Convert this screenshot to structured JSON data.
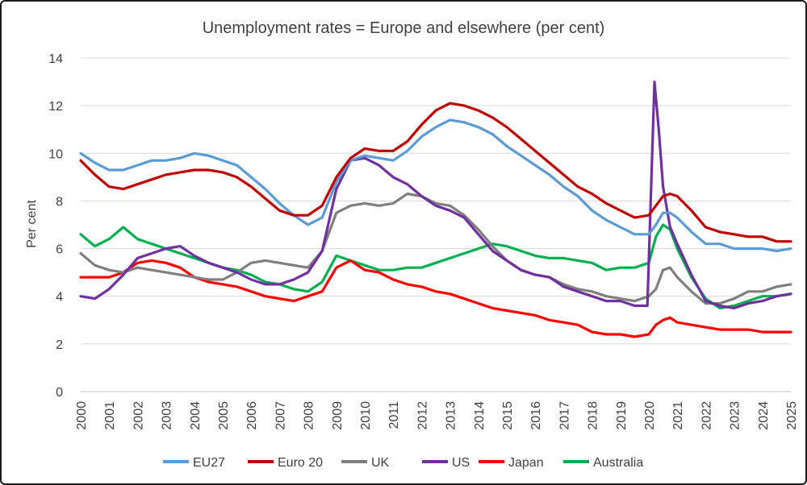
{
  "chart_data": {
    "type": "line",
    "title": "Unemployment rates = Europe and elsewhere (per cent)",
    "xlabel": "",
    "ylabel": "Per cent",
    "xlim": [
      2000,
      2025
    ],
    "ylim": [
      0,
      14
    ],
    "yticks": [
      0,
      2,
      4,
      6,
      8,
      10,
      12,
      14
    ],
    "xticks": [
      "2000",
      "2001",
      "2002",
      "2003",
      "2004",
      "2005",
      "2006",
      "2007",
      "2008",
      "2009",
      "2010",
      "2011",
      "2012",
      "2013",
      "2014",
      "2015",
      "2016",
      "2017",
      "2018",
      "2019",
      "2020",
      "2021",
      "2022",
      "2023",
      "2024",
      "2025"
    ],
    "grid": true,
    "legend_position": "bottom",
    "series": [
      {
        "name": "EU27",
        "color": "#5b9bd5",
        "x": [
          2000,
          2000.5,
          2001,
          2001.5,
          2002,
          2002.5,
          2003,
          2003.5,
          2004,
          2004.5,
          2005,
          2005.5,
          2006,
          2006.5,
          2007,
          2007.5,
          2008,
          2008.5,
          2009,
          2009.5,
          2010,
          2010.5,
          2011,
          2011.5,
          2012,
          2012.5,
          2013,
          2013.5,
          2014,
          2014.5,
          2015,
          2015.5,
          2016,
          2016.5,
          2017,
          2017.5,
          2018,
          2018.5,
          2019,
          2019.5,
          2020,
          2020.25,
          2020.5,
          2020.75,
          2021,
          2021.5,
          2022,
          2022.5,
          2023,
          2023.5,
          2024,
          2024.5,
          2025
        ],
        "y": [
          10.0,
          9.6,
          9.3,
          9.3,
          9.5,
          9.7,
          9.7,
          9.8,
          10.0,
          9.9,
          9.7,
          9.5,
          9.0,
          8.5,
          7.9,
          7.4,
          7.0,
          7.3,
          8.8,
          9.7,
          9.9,
          9.8,
          9.7,
          10.1,
          10.7,
          11.1,
          11.4,
          11.3,
          11.1,
          10.8,
          10.3,
          9.9,
          9.5,
          9.1,
          8.6,
          8.2,
          7.6,
          7.2,
          6.9,
          6.6,
          6.6,
          7.0,
          7.5,
          7.5,
          7.3,
          6.7,
          6.2,
          6.2,
          6.0,
          6.0,
          6.0,
          5.9,
          6.0
        ]
      },
      {
        "name": "Euro 20",
        "color": "#c00000",
        "x": [
          2000,
          2000.5,
          2001,
          2001.5,
          2002,
          2002.5,
          2003,
          2003.5,
          2004,
          2004.5,
          2005,
          2005.5,
          2006,
          2006.5,
          2007,
          2007.5,
          2008,
          2008.5,
          2009,
          2009.5,
          2010,
          2010.5,
          2011,
          2011.5,
          2012,
          2012.5,
          2013,
          2013.5,
          2014,
          2014.5,
          2015,
          2015.5,
          2016,
          2016.5,
          2017,
          2017.5,
          2018,
          2018.5,
          2019,
          2019.5,
          2020,
          2020.25,
          2020.5,
          2020.75,
          2021,
          2021.5,
          2022,
          2022.5,
          2023,
          2023.5,
          2024,
          2024.5,
          2025
        ],
        "y": [
          9.7,
          9.1,
          8.6,
          8.5,
          8.7,
          8.9,
          9.1,
          9.2,
          9.3,
          9.3,
          9.2,
          9.0,
          8.6,
          8.1,
          7.6,
          7.4,
          7.4,
          7.8,
          9.0,
          9.8,
          10.2,
          10.1,
          10.1,
          10.5,
          11.2,
          11.8,
          12.1,
          12.0,
          11.8,
          11.5,
          11.1,
          10.6,
          10.1,
          9.6,
          9.1,
          8.6,
          8.3,
          7.9,
          7.6,
          7.3,
          7.4,
          7.8,
          8.2,
          8.3,
          8.2,
          7.6,
          6.9,
          6.7,
          6.6,
          6.5,
          6.5,
          6.3,
          6.3
        ]
      },
      {
        "name": "UK",
        "color": "#7f7f7f",
        "x": [
          2000,
          2000.5,
          2001,
          2001.5,
          2002,
          2002.5,
          2003,
          2003.5,
          2004,
          2004.5,
          2005,
          2005.5,
          2006,
          2006.5,
          2007,
          2007.5,
          2008,
          2008.5,
          2009,
          2009.5,
          2010,
          2010.5,
          2011,
          2011.5,
          2012,
          2012.5,
          2013,
          2013.5,
          2014,
          2014.5,
          2015,
          2015.5,
          2016,
          2016.5,
          2017,
          2017.5,
          2018,
          2018.5,
          2019,
          2019.5,
          2020,
          2020.25,
          2020.5,
          2020.75,
          2021,
          2021.5,
          2022,
          2022.5,
          2023,
          2023.5,
          2024,
          2024.5,
          2025
        ],
        "y": [
          5.8,
          5.3,
          5.1,
          5.0,
          5.2,
          5.1,
          5.0,
          4.9,
          4.8,
          4.7,
          4.7,
          5.0,
          5.4,
          5.5,
          5.4,
          5.3,
          5.2,
          5.9,
          7.5,
          7.8,
          7.9,
          7.8,
          7.9,
          8.3,
          8.2,
          7.9,
          7.8,
          7.4,
          6.8,
          6.1,
          5.5,
          5.1,
          4.9,
          4.8,
          4.5,
          4.3,
          4.2,
          4.0,
          3.9,
          3.8,
          4.0,
          4.3,
          5.1,
          5.2,
          4.8,
          4.2,
          3.7,
          3.7,
          3.9,
          4.2,
          4.2,
          4.4,
          4.5
        ]
      },
      {
        "name": "US",
        "color": "#7030a0",
        "x": [
          2000,
          2000.5,
          2001,
          2001.5,
          2002,
          2002.5,
          2003,
          2003.5,
          2004,
          2004.5,
          2005,
          2005.5,
          2006,
          2006.5,
          2007,
          2007.5,
          2008,
          2008.5,
          2009,
          2009.5,
          2010,
          2010.5,
          2011,
          2011.5,
          2012,
          2012.5,
          2013,
          2013.5,
          2014,
          2014.5,
          2015,
          2015.5,
          2016,
          2016.5,
          2017,
          2017.5,
          2018,
          2018.5,
          2019,
          2019.5,
          2019.95,
          2020.2,
          2020.35,
          2020.5,
          2020.75,
          2021,
          2021.5,
          2022,
          2022.5,
          2023,
          2023.5,
          2024,
          2024.5,
          2025
        ],
        "y": [
          4.0,
          3.9,
          4.3,
          4.9,
          5.6,
          5.8,
          6.0,
          6.1,
          5.7,
          5.4,
          5.2,
          5.0,
          4.7,
          4.5,
          4.5,
          4.7,
          5.0,
          5.9,
          8.5,
          9.7,
          9.8,
          9.5,
          9.0,
          8.7,
          8.2,
          7.8,
          7.6,
          7.3,
          6.6,
          5.9,
          5.5,
          5.1,
          4.9,
          4.8,
          4.4,
          4.2,
          4.0,
          3.8,
          3.8,
          3.6,
          3.6,
          13.0,
          11.0,
          8.6,
          6.9,
          6.2,
          4.9,
          3.8,
          3.6,
          3.5,
          3.7,
          3.8,
          4.0,
          4.1
        ]
      },
      {
        "name": "Japan",
        "color": "#ff0000",
        "x": [
          2000,
          2000.5,
          2001,
          2001.5,
          2002,
          2002.5,
          2003,
          2003.5,
          2004,
          2004.5,
          2005,
          2005.5,
          2006,
          2006.5,
          2007,
          2007.5,
          2008,
          2008.5,
          2009,
          2009.5,
          2010,
          2010.5,
          2011,
          2011.5,
          2012,
          2012.5,
          2013,
          2013.5,
          2014,
          2014.5,
          2015,
          2015.5,
          2016,
          2016.5,
          2017,
          2017.5,
          2018,
          2018.5,
          2019,
          2019.5,
          2020,
          2020.25,
          2020.5,
          2020.75,
          2021,
          2021.5,
          2022,
          2022.5,
          2023,
          2023.5,
          2024,
          2024.5,
          2025
        ],
        "y": [
          4.8,
          4.8,
          4.8,
          5.0,
          5.4,
          5.5,
          5.4,
          5.2,
          4.8,
          4.6,
          4.5,
          4.4,
          4.2,
          4.0,
          3.9,
          3.8,
          4.0,
          4.2,
          5.2,
          5.5,
          5.1,
          5.0,
          4.7,
          4.5,
          4.4,
          4.2,
          4.1,
          3.9,
          3.7,
          3.5,
          3.4,
          3.3,
          3.2,
          3.0,
          2.9,
          2.8,
          2.5,
          2.4,
          2.4,
          2.3,
          2.4,
          2.8,
          3.0,
          3.1,
          2.9,
          2.8,
          2.7,
          2.6,
          2.6,
          2.6,
          2.5,
          2.5,
          2.5
        ]
      },
      {
        "name": "Australia",
        "color": "#00b050",
        "x": [
          2000,
          2000.5,
          2001,
          2001.5,
          2002,
          2002.5,
          2003,
          2003.5,
          2004,
          2004.5,
          2005,
          2005.5,
          2006,
          2006.5,
          2007,
          2007.5,
          2008,
          2008.5,
          2009,
          2009.5,
          2010,
          2010.5,
          2011,
          2011.5,
          2012,
          2012.5,
          2013,
          2013.5,
          2014,
          2014.5,
          2015,
          2015.5,
          2016,
          2016.5,
          2017,
          2017.5,
          2018,
          2018.5,
          2019,
          2019.5,
          2020,
          2020.25,
          2020.5,
          2020.75,
          2021,
          2021.5,
          2022,
          2022.5,
          2023,
          2023.5,
          2024,
          2024.5,
          2025
        ],
        "y": [
          6.6,
          6.1,
          6.4,
          6.9,
          6.4,
          6.2,
          6.0,
          5.8,
          5.6,
          5.4,
          5.2,
          5.1,
          4.9,
          4.6,
          4.5,
          4.3,
          4.2,
          4.6,
          5.7,
          5.5,
          5.3,
          5.1,
          5.1,
          5.2,
          5.2,
          5.4,
          5.6,
          5.8,
          6.0,
          6.2,
          6.1,
          5.9,
          5.7,
          5.6,
          5.6,
          5.5,
          5.4,
          5.1,
          5.2,
          5.2,
          5.4,
          6.5,
          7.0,
          6.8,
          6.0,
          4.8,
          3.9,
          3.5,
          3.6,
          3.8,
          4.0,
          4.0,
          4.1
        ]
      }
    ]
  }
}
